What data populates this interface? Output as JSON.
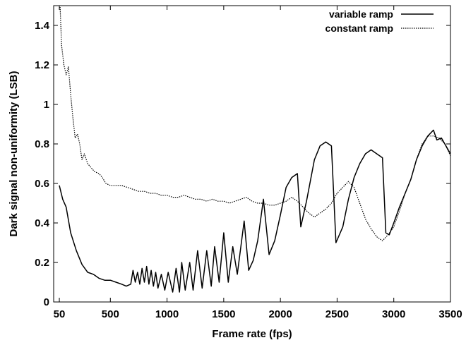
{
  "chart_data": {
    "type": "line",
    "title": "",
    "xlabel": "Frame rate (fps)",
    "ylabel": "Dark signal non-uniformity (LSB)",
    "xlim": [
      0,
      3500
    ],
    "ylim": [
      0,
      1.5
    ],
    "x_ticks": [
      50,
      500,
      1000,
      1500,
      2000,
      2500,
      3000,
      3500
    ],
    "x_tick_labels": [
      "50",
      "500",
      "1000",
      "1500",
      "2000",
      "2500",
      "3000",
      "3500"
    ],
    "y_ticks": [
      0,
      0.2,
      0.4,
      0.6,
      0.8,
      1.0,
      1.2,
      1.4
    ],
    "y_tick_labels": [
      "0",
      "0.2",
      "0.4",
      "0.6",
      "0.8",
      "1",
      "1.2",
      "1.4"
    ],
    "grid": false,
    "legend_position": "top-right",
    "series": [
      {
        "name": "variable ramp",
        "style": "solid",
        "color": "#000000",
        "points": [
          [
            50,
            0.59
          ],
          [
            80,
            0.52
          ],
          [
            110,
            0.48
          ],
          [
            150,
            0.35
          ],
          [
            200,
            0.26
          ],
          [
            250,
            0.19
          ],
          [
            300,
            0.15
          ],
          [
            350,
            0.14
          ],
          [
            400,
            0.12
          ],
          [
            450,
            0.11
          ],
          [
            500,
            0.11
          ],
          [
            550,
            0.1
          ],
          [
            600,
            0.09
          ],
          [
            640,
            0.08
          ],
          [
            680,
            0.09
          ],
          [
            700,
            0.16
          ],
          [
            720,
            0.1
          ],
          [
            740,
            0.15
          ],
          [
            760,
            0.09
          ],
          [
            780,
            0.17
          ],
          [
            800,
            0.1
          ],
          [
            820,
            0.18
          ],
          [
            840,
            0.09
          ],
          [
            860,
            0.16
          ],
          [
            880,
            0.08
          ],
          [
            900,
            0.15
          ],
          [
            920,
            0.07
          ],
          [
            950,
            0.14
          ],
          [
            980,
            0.06
          ],
          [
            1010,
            0.15
          ],
          [
            1050,
            0.05
          ],
          [
            1080,
            0.17
          ],
          [
            1110,
            0.05
          ],
          [
            1130,
            0.2
          ],
          [
            1160,
            0.06
          ],
          [
            1200,
            0.2
          ],
          [
            1230,
            0.06
          ],
          [
            1270,
            0.26
          ],
          [
            1310,
            0.07
          ],
          [
            1350,
            0.26
          ],
          [
            1390,
            0.08
          ],
          [
            1420,
            0.28
          ],
          [
            1460,
            0.1
          ],
          [
            1500,
            0.35
          ],
          [
            1540,
            0.1
          ],
          [
            1580,
            0.28
          ],
          [
            1620,
            0.14
          ],
          [
            1680,
            0.41
          ],
          [
            1720,
            0.16
          ],
          [
            1760,
            0.21
          ],
          [
            1800,
            0.31
          ],
          [
            1850,
            0.52
          ],
          [
            1900,
            0.24
          ],
          [
            1950,
            0.31
          ],
          [
            2000,
            0.44
          ],
          [
            2050,
            0.58
          ],
          [
            2100,
            0.63
          ],
          [
            2150,
            0.65
          ],
          [
            2180,
            0.38
          ],
          [
            2230,
            0.51
          ],
          [
            2300,
            0.72
          ],
          [
            2350,
            0.79
          ],
          [
            2400,
            0.81
          ],
          [
            2450,
            0.79
          ],
          [
            2490,
            0.3
          ],
          [
            2550,
            0.38
          ],
          [
            2600,
            0.52
          ],
          [
            2650,
            0.63
          ],
          [
            2700,
            0.7
          ],
          [
            2750,
            0.75
          ],
          [
            2800,
            0.77
          ],
          [
            2850,
            0.75
          ],
          [
            2900,
            0.73
          ],
          [
            2930,
            0.35
          ],
          [
            2960,
            0.34
          ],
          [
            3000,
            0.4
          ],
          [
            3050,
            0.48
          ],
          [
            3100,
            0.55
          ],
          [
            3150,
            0.62
          ],
          [
            3200,
            0.72
          ],
          [
            3250,
            0.79
          ],
          [
            3300,
            0.84
          ],
          [
            3350,
            0.87
          ],
          [
            3380,
            0.82
          ],
          [
            3420,
            0.83
          ],
          [
            3460,
            0.79
          ],
          [
            3500,
            0.75
          ]
        ]
      },
      {
        "name": "constant ramp",
        "style": "dotted",
        "color": "#000000",
        "points": [
          [
            50,
            1.6
          ],
          [
            70,
            1.3
          ],
          [
            90,
            1.2
          ],
          [
            110,
            1.15
          ],
          [
            130,
            1.19
          ],
          [
            150,
            1.05
          ],
          [
            170,
            0.93
          ],
          [
            190,
            0.83
          ],
          [
            210,
            0.85
          ],
          [
            230,
            0.8
          ],
          [
            250,
            0.72
          ],
          [
            270,
            0.75
          ],
          [
            300,
            0.7
          ],
          [
            330,
            0.68
          ],
          [
            360,
            0.66
          ],
          [
            400,
            0.65
          ],
          [
            430,
            0.63
          ],
          [
            460,
            0.6
          ],
          [
            500,
            0.59
          ],
          [
            550,
            0.59
          ],
          [
            600,
            0.59
          ],
          [
            650,
            0.58
          ],
          [
            700,
            0.57
          ],
          [
            750,
            0.56
          ],
          [
            800,
            0.56
          ],
          [
            850,
            0.55
          ],
          [
            900,
            0.55
          ],
          [
            950,
            0.54
          ],
          [
            1000,
            0.54
          ],
          [
            1050,
            0.53
          ],
          [
            1100,
            0.53
          ],
          [
            1150,
            0.54
          ],
          [
            1200,
            0.53
          ],
          [
            1250,
            0.52
          ],
          [
            1300,
            0.52
          ],
          [
            1350,
            0.51
          ],
          [
            1400,
            0.52
          ],
          [
            1450,
            0.51
          ],
          [
            1500,
            0.51
          ],
          [
            1550,
            0.5
          ],
          [
            1600,
            0.51
          ],
          [
            1650,
            0.52
          ],
          [
            1700,
            0.53
          ],
          [
            1750,
            0.51
          ],
          [
            1800,
            0.5
          ],
          [
            1850,
            0.5
          ],
          [
            1900,
            0.49
          ],
          [
            1950,
            0.49
          ],
          [
            2000,
            0.5
          ],
          [
            2050,
            0.51
          ],
          [
            2100,
            0.53
          ],
          [
            2150,
            0.51
          ],
          [
            2200,
            0.48
          ],
          [
            2250,
            0.45
          ],
          [
            2300,
            0.43
          ],
          [
            2350,
            0.45
          ],
          [
            2400,
            0.47
          ],
          [
            2450,
            0.5
          ],
          [
            2500,
            0.55
          ],
          [
            2550,
            0.58
          ],
          [
            2600,
            0.61
          ],
          [
            2650,
            0.58
          ],
          [
            2700,
            0.5
          ],
          [
            2750,
            0.42
          ],
          [
            2800,
            0.37
          ],
          [
            2850,
            0.33
          ],
          [
            2900,
            0.31
          ],
          [
            2950,
            0.34
          ],
          [
            3000,
            0.38
          ],
          [
            3050,
            0.46
          ],
          [
            3100,
            0.55
          ],
          [
            3150,
            0.62
          ],
          [
            3200,
            0.72
          ],
          [
            3250,
            0.8
          ],
          [
            3300,
            0.84
          ],
          [
            3350,
            0.84
          ],
          [
            3400,
            0.83
          ],
          [
            3450,
            0.8
          ],
          [
            3500,
            0.74
          ]
        ]
      }
    ]
  }
}
